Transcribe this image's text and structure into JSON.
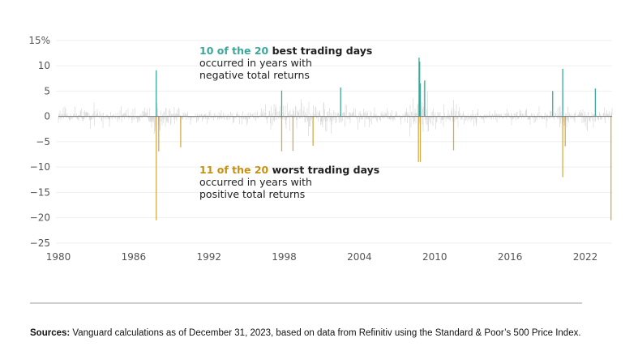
{
  "chart_data": {
    "type": "bar",
    "xlabel": "",
    "ylabel": "",
    "xlim": [
      1980,
      2024.1
    ],
    "ylim": [
      -25,
      15
    ],
    "x_ticks": [
      "1980",
      "1986",
      "1992",
      "1998",
      "2004",
      "2010",
      "2016",
      "2022"
    ],
    "y_ticks": [
      {
        "value": 15,
        "label": "15%"
      },
      {
        "value": 10,
        "label": "10"
      },
      {
        "value": 5,
        "label": "5"
      },
      {
        "value": 0,
        "label": "0"
      },
      {
        "value": -5,
        "label": "−5"
      },
      {
        "value": -10,
        "label": "−10"
      },
      {
        "value": -15,
        "label": "−15"
      },
      {
        "value": -20,
        "label": "−20"
      },
      {
        "value": -25,
        "label": "−25"
      }
    ],
    "grid": true,
    "colors": {
      "best": "#3aa89a",
      "worst": "#c8900f",
      "other": "#d2d2d2",
      "zero_line": "#777777"
    },
    "best_days": [
      {
        "year": 1987.8,
        "value": 9.1
      },
      {
        "year": 1997.8,
        "value": 5.1
      },
      {
        "year": 2002.5,
        "value": 5.7
      },
      {
        "year": 2008.75,
        "value": 11.6
      },
      {
        "year": 2008.8,
        "value": 10.8
      },
      {
        "year": 2008.85,
        "value": 6.5
      },
      {
        "year": 2009.2,
        "value": 7.1
      },
      {
        "year": 2019.4,
        "value": 5.0
      },
      {
        "year": 2020.2,
        "value": 9.4
      },
      {
        "year": 2022.8,
        "value": 5.5
      }
    ],
    "worst_days": [
      {
        "year": 1987.8,
        "value": -20.5
      },
      {
        "year": 1988.0,
        "value": -6.9
      },
      {
        "year": 1989.75,
        "value": -6.1
      },
      {
        "year": 1997.8,
        "value": -6.9
      },
      {
        "year": 1998.7,
        "value": -6.8
      },
      {
        "year": 2000.3,
        "value": -5.8
      },
      {
        "year": 2008.7,
        "value": -9.0
      },
      {
        "year": 2008.85,
        "value": -9.0
      },
      {
        "year": 2011.5,
        "value": -6.7
      },
      {
        "year": 2020.2,
        "value": -12.0
      },
      {
        "year": 2020.4,
        "value": -5.9
      },
      {
        "year": 2024.05,
        "value": -20.5
      }
    ]
  },
  "annotations": {
    "best": {
      "highlight": "10 of the 20",
      "bold": " best trading days",
      "line2": "occurred in years with",
      "line3": "negative total returns"
    },
    "worst": {
      "highlight": "11 of the 20",
      "bold": " worst trading days",
      "line2": "occurred in years with",
      "line3": "positive total returns"
    }
  },
  "sources": {
    "label": "Sources:",
    "text": " Vanguard calculations as of December 31, 2023, based on data from Refinitiv using the Standard & Poor’s 500 Price Index."
  }
}
